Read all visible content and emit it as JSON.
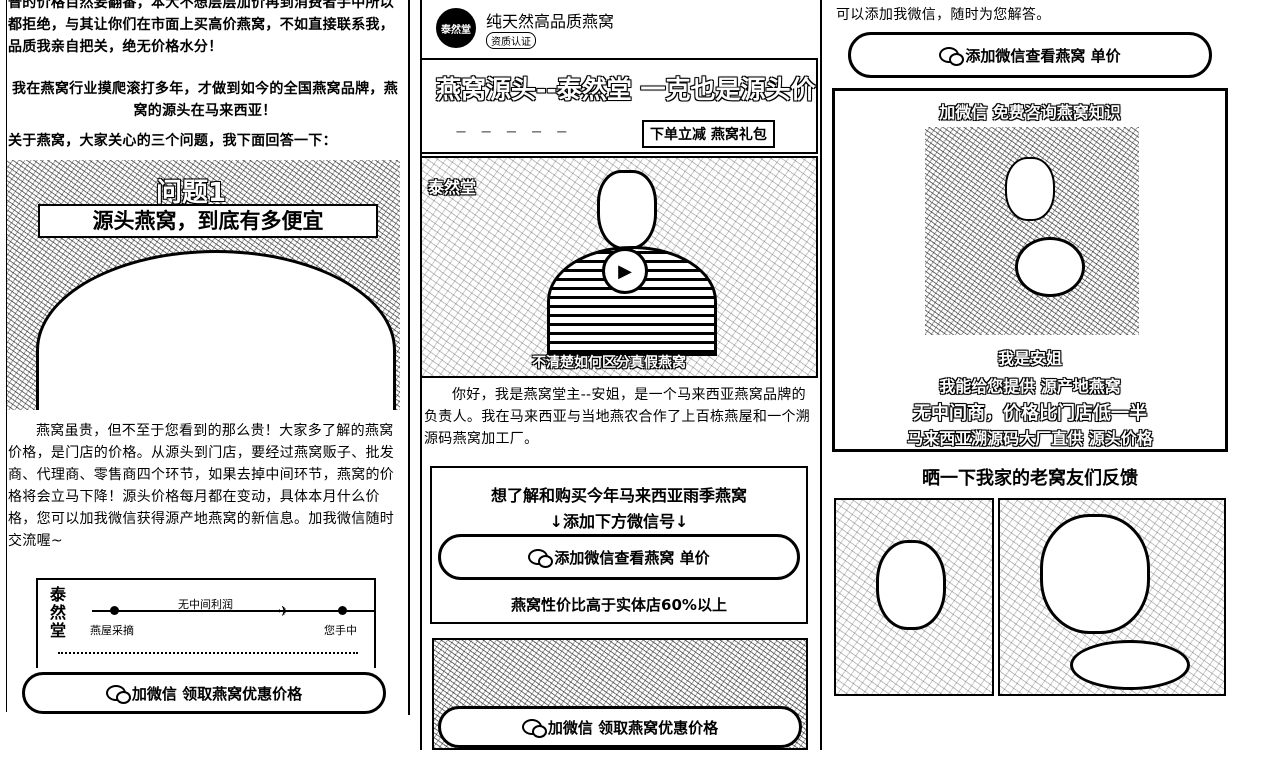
{
  "col1": {
    "intro_para": "普的价格百然妄翻番，本大不想层层加价再到消费者手中所以都拒绝，与其让你们在市面上买高价燕窝，不如直接联系我，品质我亲自把关，绝无价格水分！",
    "claim_para": "我在燕窝行业摸爬滚打多年，才做到如今的全国燕窝品牌，燕窝的源头在马来西亚！",
    "questions_heading": "关于燕窝，大家关心的三个问题，我下面回答一下：",
    "q_tag": "问题1",
    "q_title": "源头燕窝，到底有多便宜",
    "answer_para": "燕窝虽贵，但不至于您看到的那么贵！大家多了解的燕窝价格，是门店的价格。从源头到门店，要经过燕窝贩子、批发商、代理商、零售商四个环节，如果去掉中间环节，燕窝的价格将会立马下降！源头价格每月都在变动，具体本月什么价格，您可以加我微信获得源产地燕窝的新信息。加我微信随时交流喔~",
    "diagram": {
      "brand": "泰然堂",
      "middle_label": "无中间利润",
      "start_label": "燕屋采摘",
      "end_label": "您手中"
    },
    "cta_label": "加微信 领取燕窝优惠价格"
  },
  "col2": {
    "profile_avatar_text": "泰然堂",
    "profile_name": "纯天然高品质燕窝",
    "profile_badge": "资质认证",
    "banner_title": "燕窝源头--泰然堂 一克也是源头价",
    "banner_sub": "下单立减 燕窝礼包",
    "banner_small": "一 一 一 一 一",
    "video_logo": "泰然堂",
    "video_subtitle": "不清楚如何区分真假燕窝",
    "bio_para": "你好，我是燕窝堂主--安姐，是一个马来西亚燕窝品牌的负责人。我在马来西亚与当地燕农合作了上百栋燕屋和一个溯源码燕窝加工厂。",
    "promo_line1": "想了解和购买今年马来西亚雨季燕窝",
    "promo_line2": "↓添加下方微信号↓",
    "promo_btn": "添加微信查看燕窝  单价",
    "promo_note": "燕窝性价比高于实体店60%以上",
    "cta_label": "加微信 领取燕窝优惠价格"
  },
  "col3": {
    "top_text": "可以添加我微信，随时为您解答。",
    "top_btn": "添加微信查看燕窝  单价",
    "card_tag": "加微信 免费咨询燕窝知识",
    "card_line1": "我是安姐",
    "card_line2": "我能给您提供  源产地燕窝",
    "card_line3": "无中间商，价格比门店低一半",
    "card_line4": "马来西亚溯源码大厂直供 源头价格",
    "feedback_heading": "晒一下我家的老窝友们反馈"
  }
}
